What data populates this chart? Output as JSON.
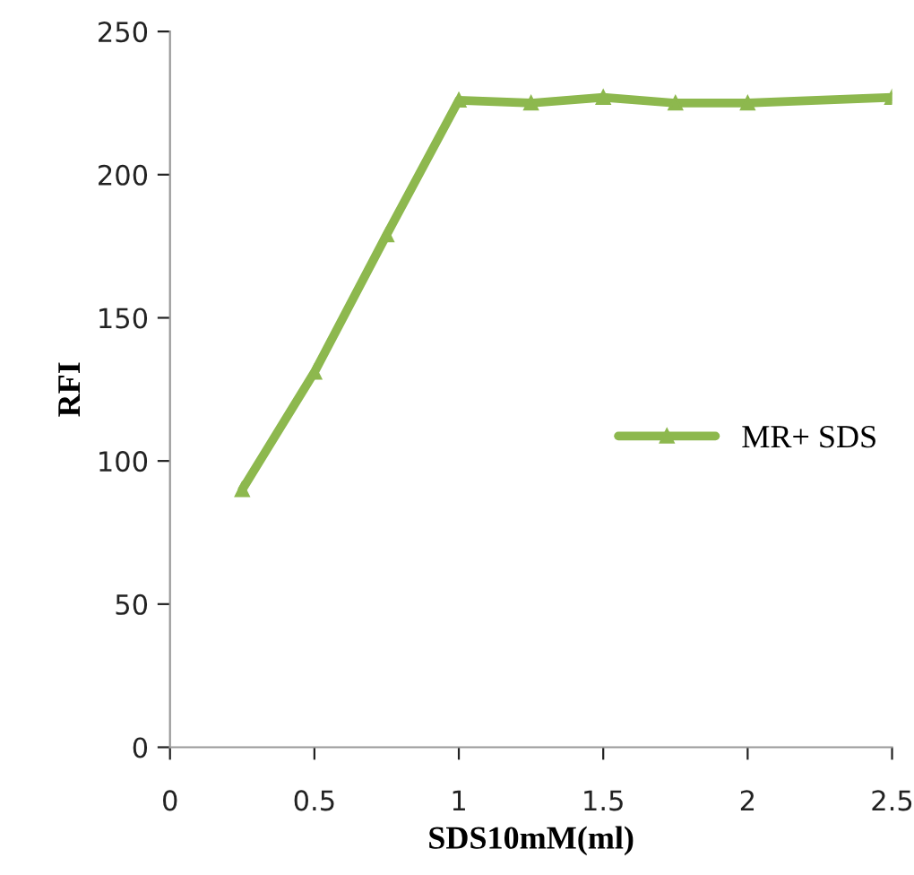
{
  "chart_data": {
    "type": "line",
    "xlabel": "SDS10mM(ml)",
    "ylabel": "RFI",
    "x": [
      0.25,
      0.5,
      0.75,
      1.0,
      1.25,
      1.5,
      1.75,
      2.0,
      2.5
    ],
    "series": [
      {
        "name": "MR+ SDS",
        "color": "#8db84e",
        "values": [
          90,
          131,
          179,
          226,
          225,
          227,
          225,
          225,
          227
        ]
      }
    ],
    "xlim": [
      0,
      2.5
    ],
    "ylim": [
      0,
      250
    ],
    "xticks": [
      0,
      0.5,
      1,
      1.5,
      2,
      2.5
    ],
    "yticks": [
      0,
      50,
      100,
      150,
      200,
      250
    ],
    "grid": false,
    "legend": "right",
    "marker": "triangle",
    "line_style": "solid"
  }
}
